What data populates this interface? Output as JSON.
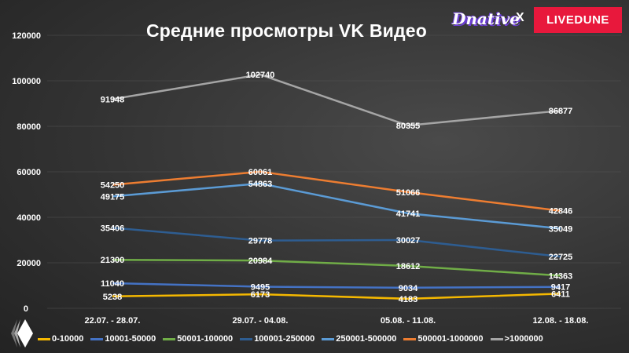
{
  "header": {
    "title": "Средние просмотры VK Видео",
    "brand_left": "Dnative",
    "brand_sep": "X",
    "brand_right": "LIVEDUNE"
  },
  "chart_data": {
    "type": "line",
    "title": "Средние просмотры VK Видео",
    "xlabel": "",
    "ylabel": "",
    "ylim": [
      0,
      120000
    ],
    "yticks": [
      0,
      20000,
      40000,
      60000,
      80000,
      100000,
      120000
    ],
    "grid": true,
    "legend_position": "bottom",
    "categories": [
      "22.07. - 28.07.",
      "29.07. - 04.08.",
      "05.08. - 11.08.",
      "12.08. - 18.08."
    ],
    "series": [
      {
        "name": "0-10000",
        "color": "#f5b800",
        "values": [
          5238,
          6173,
          4183,
          6411
        ]
      },
      {
        "name": "10001-50000",
        "color": "#4472c4",
        "values": [
          11040,
          9495,
          9034,
          9417
        ]
      },
      {
        "name": "50001-100000",
        "color": "#70ad47",
        "values": [
          21300,
          20984,
          18612,
          14363
        ]
      },
      {
        "name": "100001-250000",
        "color": "#2e5d91",
        "values": [
          35406,
          29778,
          30027,
          22725
        ]
      },
      {
        "name": "250001-500000",
        "color": "#5b9bd5",
        "values": [
          49175,
          54863,
          41741,
          35049
        ]
      },
      {
        "name": "500001-1000000",
        "color": "#ed7d31",
        "values": [
          54250,
          60061,
          51066,
          42846
        ]
      },
      {
        "name": ">1000000",
        "color": "#a5a5a5",
        "values": [
          91948,
          102740,
          80355,
          86877
        ]
      }
    ]
  }
}
